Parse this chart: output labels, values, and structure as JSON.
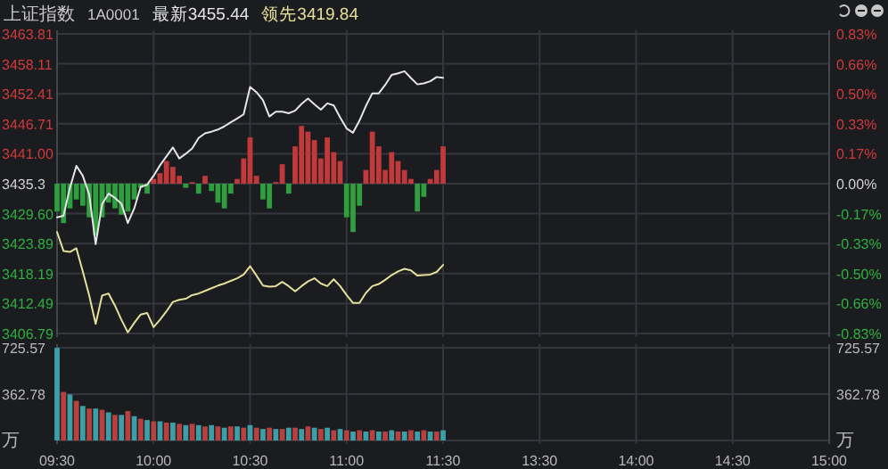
{
  "chart_data": [
    {
      "type": "line",
      "title": "上证指数",
      "subtitle": "1A0001",
      "legend": "top left",
      "grid": true,
      "tick_labels": "y",
      "categories": [
        null,
        null,
        null,
        null,
        null,
        null,
        null,
        null,
        null,
        null,
        null,
        null,
        null,
        null,
        null,
        null,
        null,
        null,
        null,
        null,
        null,
        null,
        null,
        null,
        null,
        null,
        null,
        null,
        null,
        null,
        null,
        null,
        null,
        null,
        null,
        null,
        null,
        null,
        null,
        null,
        null,
        null,
        null,
        null,
        null,
        null,
        null,
        null,
        null,
        null,
        null,
        null,
        null,
        null,
        null,
        null,
        null,
        null,
        null,
        null,
        null,
        null,
        null,
        null,
        null,
        null,
        null,
        null,
        null,
        null,
        null,
        null,
        null,
        null,
        null,
        null,
        null,
        null,
        null,
        null,
        null,
        null,
        null,
        null,
        null,
        null,
        null,
        null,
        null,
        null,
        null,
        null,
        null,
        null,
        null,
        null,
        null,
        null,
        null,
        null,
        null,
        null,
        null,
        null,
        null,
        null,
        null,
        null,
        null,
        null,
        null,
        null,
        null,
        null,
        null,
        null,
        null,
        null,
        null,
        null,
        null
      ],
      "ylim": [
        3406.79,
        3463.81
      ],
      "yticks": [
        3406.79,
        3412.49,
        3418.19,
        3423.89,
        {
          "value": 3429.6,
          "label": "3429.60"
        },
        3435.3,
        {
          "value": 3441,
          "label": "3441.00"
        },
        3446.71,
        3452.41,
        3458.11,
        3463.81
      ],
      "y2lim": [
        -0.83,
        0.83
      ],
      "y2ticks": [
        {
          "value": -0.83,
          "label": "-0.83%"
        },
        {
          "value": -0.66,
          "label": "-0.66%"
        },
        {
          "value": -0.5,
          "label": "-0.50%"
        },
        {
          "value": -0.33,
          "label": "-0.33%"
        },
        {
          "value": -0.17,
          "label": "-0.17%"
        },
        {
          "value": 0,
          "label": "0.00%"
        },
        {
          "value": 0.17,
          "label": "0.17%"
        },
        {
          "value": 0.33,
          "label": "0.33%"
        },
        {
          "value": 0.5,
          "label": "0.50%"
        },
        {
          "value": 0.66,
          "label": "0.66%"
        },
        {
          "value": 0.83,
          "label": "0.83%"
        }
      ],
      "series": [
        {
          "type": "bar",
          "base": [
            3435.3,
            3435.3,
            3435.3,
            3435.3,
            3435.3,
            3435.3,
            3435.3,
            3435.3,
            3435.3,
            3435.3,
            3435.3,
            3435.3,
            3435.3,
            3435.3,
            3435.3,
            3435.3,
            3435.3,
            3435.3,
            3435.3,
            3435.3,
            3435.3,
            3435.3,
            3435.3,
            3435.3,
            3435.3,
            3435.3,
            3435.3,
            3435.3,
            3435.3,
            3435.3,
            3435.3,
            3435.3,
            3435.3,
            3435.3,
            3435.3,
            3435.3,
            3435.3,
            3435.3,
            3435.3,
            3435.3,
            3435.3,
            3435.3,
            3435.3,
            3435.3,
            3435.3,
            3435.3,
            3435.3,
            3435.3,
            3435.3,
            3435.3,
            3435.3,
            3435.3,
            3435.3,
            3435.3,
            3435.3,
            3435.3,
            3435.3,
            3435.3,
            3435.3,
            3435.3,
            3435.3,
            null,
            null,
            null,
            null,
            null,
            null,
            null,
            null,
            null,
            null,
            null,
            null,
            null,
            null,
            null,
            null,
            null,
            null,
            null,
            null,
            null,
            null,
            null,
            null,
            null,
            null,
            null,
            null,
            null,
            null,
            null,
            null,
            null,
            null,
            null,
            null,
            null,
            null,
            null,
            null,
            null,
            null,
            null,
            null,
            null,
            null,
            null,
            null,
            null,
            null,
            null,
            null,
            null,
            null,
            null,
            null,
            null,
            null,
            null,
            null
          ],
          "values": [
            -5.3,
            -7.5,
            -4.7,
            -3.0,
            -4.2,
            -6.4,
            -9.8,
            -6.4,
            -3.6,
            -4.7,
            -5.9,
            -5.3,
            -3.0,
            -0.8,
            -1.9,
            0.9,
            2.0,
            4.3,
            3.2,
            1.5,
            -0.8,
            0.3,
            -1.9,
            1.5,
            -1.4,
            -3.6,
            -4.7,
            -1.9,
            0.9,
            4.8,
            8.8,
            1.5,
            -3.0,
            -4.7,
            0.3,
            3.7,
            -1.9,
            7.1,
            11.0,
            9.9,
            8.3,
            4.8,
            8.8,
            6.0,
            4.3,
            -6.4,
            -9.2,
            -4.2,
            2.6,
            9.9,
            7.1,
            2.6,
            6.0,
            4.3,
            2.6,
            0.9,
            -5.3,
            -2.5,
            0.9,
            2.6,
            7.1,
            null,
            null,
            null,
            null,
            null,
            null,
            null,
            null,
            null,
            null,
            null,
            null,
            null,
            null,
            null,
            null,
            null,
            null,
            null,
            null,
            null,
            null,
            null,
            null,
            null,
            null,
            null,
            null,
            null,
            null,
            null,
            null,
            null,
            null,
            null,
            null,
            null,
            null,
            null,
            null,
            null,
            null,
            null,
            null,
            null,
            null,
            null,
            null,
            null,
            null,
            null,
            null,
            null,
            null,
            null,
            null,
            null,
            null,
            null,
            null
          ],
          "colors": [
            "#2e9e3e",
            "#2e9e3e",
            "#2e9e3e",
            "#2e9e3e",
            "#2e9e3e",
            "#2e9e3e",
            "#2e9e3e",
            "#2e9e3e",
            "#2e9e3e",
            "#2e9e3e",
            "#2e9e3e",
            "#2e9e3e",
            "#2e9e3e",
            "#2e9e3e",
            "#2e9e3e",
            "#c0393b",
            "#c0393b",
            "#c0393b",
            "#c0393b",
            "#c0393b",
            "#2e9e3e",
            "#c0393b",
            "#2e9e3e",
            "#c0393b",
            "#2e9e3e",
            "#2e9e3e",
            "#2e9e3e",
            "#2e9e3e",
            "#c0393b",
            "#c0393b",
            "#c0393b",
            "#c0393b",
            "#2e9e3e",
            "#2e9e3e",
            "#c0393b",
            "#c0393b",
            "#2e9e3e",
            "#c0393b",
            "#c0393b",
            "#c0393b",
            "#c0393b",
            "#c0393b",
            "#c0393b",
            "#c0393b",
            "#c0393b",
            "#2e9e3e",
            "#2e9e3e",
            "#2e9e3e",
            "#c0393b",
            "#c0393b",
            "#c0393b",
            "#c0393b",
            "#c0393b",
            "#c0393b",
            "#c0393b",
            "#c0393b",
            "#2e9e3e",
            "#2e9e3e",
            "#c0393b",
            "#c0393b",
            "#c0393b",
            null,
            null,
            null,
            null,
            null,
            null,
            null,
            null,
            null,
            null,
            null,
            null,
            null,
            null,
            null,
            null,
            null,
            null,
            null,
            null,
            null,
            null,
            null,
            null,
            null,
            null,
            null,
            null,
            null,
            null,
            null,
            null,
            null,
            null,
            null,
            null,
            null,
            null,
            null,
            null,
            null,
            null,
            null,
            null,
            null,
            null,
            null,
            null,
            null,
            null,
            null,
            null,
            null,
            null,
            null,
            null,
            null,
            null,
            null,
            null
          ]
        },
        {
          "name": "最新3455.44",
          "color": "#e6e6e6",
          "values": [
            3428.9,
            3429.2,
            3434.5,
            3438.7,
            3436.8,
            3433.2,
            3423.8,
            3431.4,
            3433.4,
            3432.6,
            3431.5,
            3427.8,
            3430.6,
            3434.7,
            3435.1,
            3436.8,
            3438.8,
            3440.5,
            3442.2,
            3440.1,
            3441.0,
            3442.0,
            3444.0,
            3444.9,
            3445.2,
            3445.6,
            3446.2,
            3447.0,
            3447.7,
            3448.5,
            3453.7,
            3452.7,
            3451.2,
            3448.1,
            3449.0,
            3449.0,
            3448.7,
            3449.2,
            3450.5,
            3451.5,
            3450.4,
            3449.4,
            3450.6,
            3450.2,
            3447.9,
            3445.8,
            3445.0,
            3447.3,
            3450.1,
            3452.5,
            3452.5,
            3454.1,
            3456.0,
            3456.3,
            3456.7,
            3455.4,
            3454.2,
            3454.4,
            3454.8,
            3455.6,
            3455.44,
            null,
            null,
            null,
            null,
            null,
            null,
            null,
            null,
            null,
            null,
            null,
            null,
            null,
            null,
            null,
            null,
            null,
            null,
            null,
            null,
            null,
            null,
            null,
            null,
            null,
            null,
            null,
            null,
            null,
            null,
            null,
            null,
            null,
            null,
            null,
            null,
            null,
            null,
            null,
            null,
            null,
            null,
            null,
            null,
            null,
            null,
            null,
            null,
            null,
            null,
            null,
            null,
            null,
            null,
            null,
            null,
            null,
            null,
            null,
            null
          ]
        },
        {
          "name": "领先3419.84",
          "color": "#e4e09a",
          "values": [
            3426.1,
            3422.5,
            3422.3,
            3423.0,
            3418.6,
            3414.0,
            3408.6,
            3414.0,
            3414.4,
            3412.1,
            3409.4,
            3407.0,
            3408.8,
            3410.4,
            3410.7,
            3408.0,
            3409.4,
            3411.0,
            3412.8,
            3413.2,
            3413.4,
            3414.1,
            3414.4,
            3414.9,
            3415.4,
            3415.9,
            3416.3,
            3416.8,
            3417.3,
            3418.0,
            3419.6,
            3417.8,
            3415.9,
            3415.7,
            3415.8,
            3416.6,
            3415.8,
            3414.8,
            3415.8,
            3416.7,
            3417.3,
            3416.3,
            3415.8,
            3417.1,
            3415.8,
            3414.1,
            3412.6,
            3412.6,
            3414.5,
            3415.8,
            3416.2,
            3417.0,
            3417.9,
            3418.6,
            3419.1,
            3418.8,
            3417.8,
            3417.9,
            3418.0,
            3418.5,
            3419.84,
            null,
            null,
            null,
            null,
            null,
            null,
            null,
            null,
            null,
            null,
            null,
            null,
            null,
            null,
            null,
            null,
            null,
            null,
            null,
            null,
            null,
            null,
            null,
            null,
            null,
            null,
            null,
            null,
            null,
            null,
            null,
            null,
            null,
            null,
            null,
            null,
            null,
            null,
            null,
            null,
            null,
            null,
            null,
            null,
            null,
            null,
            null,
            null,
            null,
            null,
            null,
            null,
            null,
            null,
            null,
            null,
            null,
            null,
            null,
            null
          ]
        }
      ]
    },
    {
      "type": "bar",
      "grid": true,
      "categories": [
        "09:30",
        null,
        null,
        null,
        null,
        null,
        null,
        null,
        null,
        null,
        null,
        null,
        null,
        null,
        null,
        "10:00",
        null,
        null,
        null,
        null,
        null,
        null,
        null,
        null,
        null,
        null,
        null,
        null,
        null,
        null,
        "10:30",
        null,
        null,
        null,
        null,
        null,
        null,
        null,
        null,
        null,
        null,
        null,
        null,
        null,
        null,
        "11:00",
        null,
        null,
        null,
        null,
        null,
        null,
        null,
        null,
        null,
        null,
        null,
        null,
        null,
        null,
        "11:30",
        null,
        null,
        null,
        null,
        null,
        null,
        null,
        null,
        null,
        null,
        null,
        null,
        null,
        null,
        "13:30",
        null,
        null,
        null,
        null,
        null,
        null,
        null,
        null,
        null,
        null,
        null,
        null,
        null,
        null,
        "14:00",
        null,
        null,
        null,
        null,
        null,
        null,
        null,
        null,
        null,
        null,
        null,
        null,
        null,
        null,
        "14:30",
        null,
        null,
        null,
        null,
        null,
        null,
        null,
        null,
        null,
        null,
        null,
        null,
        null,
        null,
        "15:00"
      ],
      "ylim": [
        0,
        725.57
      ],
      "yticks": [
        {
          "value": 0,
          "label": "万"
        },
        362.78,
        725.57
      ],
      "y2lim": [
        0,
        725.57
      ],
      "y2ticks": [
        {
          "value": 0,
          "label": "万"
        },
        362.78,
        725.57
      ],
      "values": [
        725,
        380,
        360,
        310,
        270,
        250,
        250,
        240,
        220,
        200,
        200,
        230,
        190,
        170,
        160,
        150,
        150,
        140,
        140,
        130,
        120,
        130,
        120,
        110,
        120,
        110,
        100,
        110,
        110,
        100,
        120,
        100,
        90,
        100,
        90,
        90,
        100,
        100,
        90,
        110,
        100,
        90,
        100,
        80,
        90,
        80,
        70,
        80,
        70,
        80,
        70,
        70,
        80,
        70,
        70,
        80,
        70,
        80,
        70,
        70,
        80,
        null,
        null,
        null,
        null,
        null,
        null,
        null,
        null,
        null,
        null,
        null,
        null,
        null,
        null,
        null,
        null,
        null,
        null,
        null,
        null,
        null,
        null,
        null,
        null,
        null,
        null,
        null,
        null,
        null,
        null,
        null,
        null,
        null,
        null,
        null,
        null,
        null,
        null,
        null,
        null,
        null,
        null,
        null,
        null,
        null,
        null,
        null,
        null,
        null,
        null,
        null,
        null,
        null,
        null,
        null,
        null,
        null,
        null,
        null,
        null
      ],
      "colors": [
        "#3a9fa6",
        "#b8403f",
        "#3a9fa6",
        "#b8403f",
        "#3a9fa6",
        "#b8403f",
        "#3a9fa6",
        "#b8403f",
        "#3a9fa6",
        "#b8403f",
        "#3a9fa6",
        "#b8403f",
        "#3a9fa6",
        "#b8403f",
        "#3a9fa6",
        "#b8403f",
        "#3a9fa6",
        "#b8403f",
        "#3a9fa6",
        "#b8403f",
        "#3a9fa6",
        "#b8403f",
        "#3a9fa6",
        "#b8403f",
        "#3a9fa6",
        "#b8403f",
        "#3a9fa6",
        "#b8403f",
        "#3a9fa6",
        "#b8403f",
        "#3a9fa6",
        "#b8403f",
        "#3a9fa6",
        "#b8403f",
        "#3a9fa6",
        "#b8403f",
        "#3a9fa6",
        "#b8403f",
        "#3a9fa6",
        "#b8403f",
        "#3a9fa6",
        "#b8403f",
        "#3a9fa6",
        "#b8403f",
        "#3a9fa6",
        "#b8403f",
        "#3a9fa6",
        "#b8403f",
        "#3a9fa6",
        "#b8403f",
        "#3a9fa6",
        "#b8403f",
        "#3a9fa6",
        "#b8403f",
        "#3a9fa6",
        "#b8403f",
        "#3a9fa6",
        "#b8403f",
        "#3a9fa6",
        "#b8403f",
        "#3a9fa6",
        null,
        null,
        null,
        null,
        null,
        null,
        null,
        null,
        null,
        null,
        null,
        null,
        null,
        null,
        null,
        null,
        null,
        null,
        null,
        null,
        null,
        null,
        null,
        null,
        null,
        null,
        null,
        null,
        null,
        null,
        null,
        null,
        null,
        null,
        null,
        null,
        null,
        null,
        null,
        null,
        null,
        null,
        null,
        null,
        null,
        null,
        null,
        null,
        null,
        null,
        null,
        null,
        null,
        null,
        null,
        null,
        null,
        null,
        null,
        null
      ]
    }
  ]
}
